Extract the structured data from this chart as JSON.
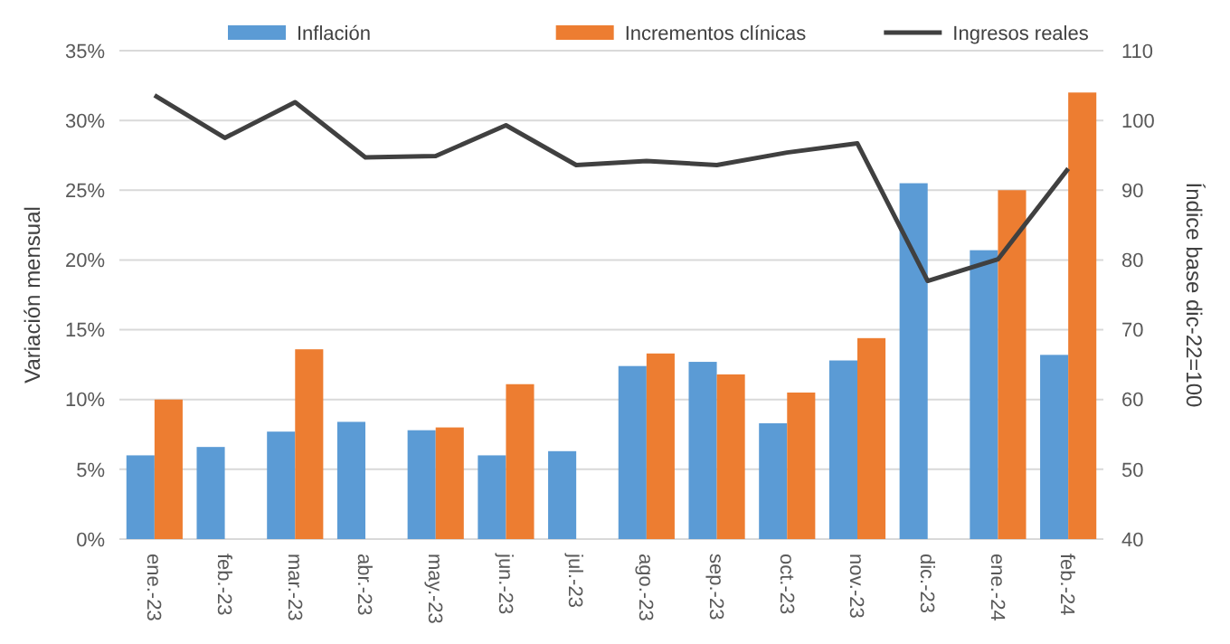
{
  "chart_data": {
    "type": "bar",
    "categories": [
      "ene.-23",
      "feb.-23",
      "mar.-23",
      "abr.-23",
      "may.-23",
      "jun.-23",
      "jul.-23",
      "ago.-23",
      "sep.-23",
      "oct.-23",
      "nov.-23",
      "dic.-23",
      "ene.-24",
      "feb.-24"
    ],
    "series": [
      {
        "name": "Inflación",
        "color": "#5b9bd5",
        "values": [
          6.0,
          6.6,
          7.7,
          8.4,
          7.8,
          6.0,
          6.3,
          12.4,
          12.7,
          8.3,
          12.8,
          25.5,
          20.7,
          13.2
        ]
      },
      {
        "name": "Incrementos clínicas",
        "color": "#ed7d31",
        "values": [
          10.0,
          null,
          13.6,
          null,
          8.0,
          11.1,
          null,
          13.3,
          11.8,
          10.5,
          14.4,
          null,
          25.0,
          32.0
        ]
      },
      {
        "name": "Ingresos reales",
        "type": "line",
        "axis": "y2",
        "color": "#404040",
        "values": [
          103.6,
          97.5,
          102.6,
          94.7,
          94.9,
          99.3,
          93.6,
          94.2,
          93.6,
          95.4,
          96.7,
          77.0,
          80.1,
          93.1
        ]
      }
    ],
    "ylabel": "Variación mensual",
    "y2label": "Índice base dic-22=100",
    "ylim": [
      0,
      35
    ],
    "yticks": [
      {
        "value": 0,
        "label": "0%"
      },
      {
        "value": 5,
        "label": "5%"
      },
      {
        "value": 10,
        "label": "10%"
      },
      {
        "value": 15,
        "label": "15%"
      },
      {
        "value": 20,
        "label": "20%"
      },
      {
        "value": 25,
        "label": "25%"
      },
      {
        "value": 30,
        "label": "30%"
      },
      {
        "value": 35,
        "label": "35%"
      }
    ],
    "y2lim": [
      40,
      110
    ],
    "y2ticks": [
      40,
      50,
      60,
      70,
      80,
      90,
      100,
      110
    ],
    "grid": "y",
    "legend": "top",
    "marker": "none",
    "line_style": "solid"
  }
}
